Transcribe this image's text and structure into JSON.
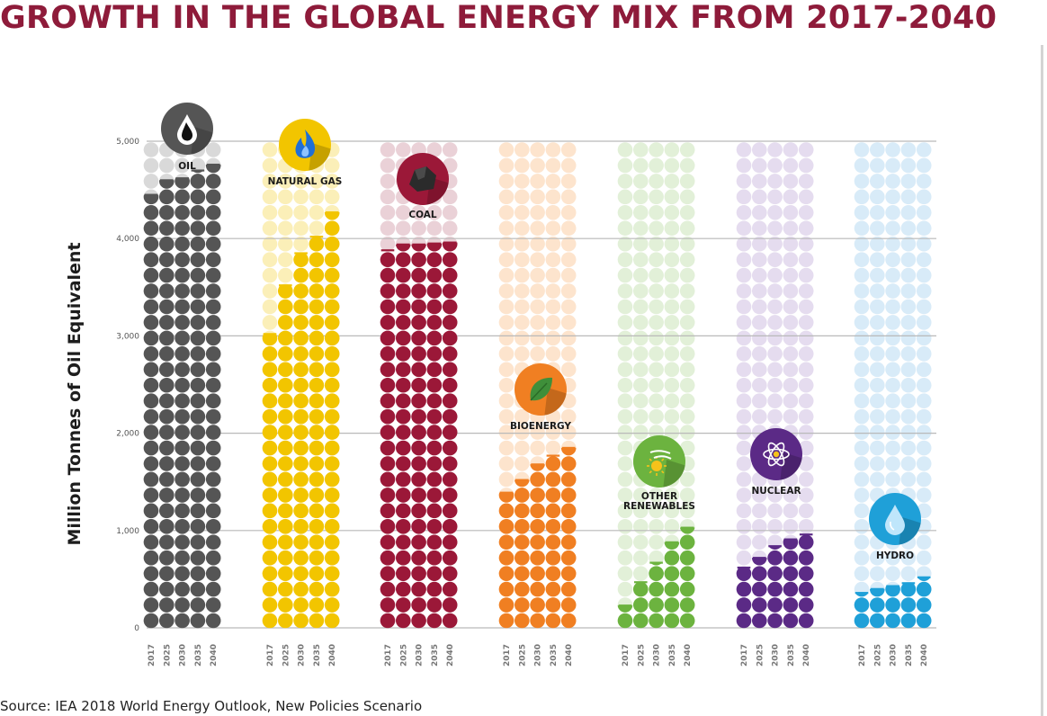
{
  "title": "GROWTH IN THE GLOBAL ENERGY MIX FROM 2017-2040",
  "source": "Source: IEA 2018 World Energy Outlook, New Policies Scenario",
  "chart_data": {
    "type": "bar",
    "title": "GROWTH IN THE GLOBAL ENERGY MIX FROM 2017-2040",
    "ylabel": "Million Tonnes of Oil Equivalent",
    "ylim": [
      0,
      5000
    ],
    "yticks": [
      "0",
      "1,000",
      "2,000",
      "3,000",
      "4,000",
      "5,000"
    ],
    "categories": [
      "2017",
      "2025",
      "2030",
      "2035",
      "2040"
    ],
    "grid": true,
    "series": [
      {
        "name": "OIL",
        "icon": "oil-drop-icon",
        "color": "#555555",
        "light": "#d9d9d9",
        "values": [
          4450,
          4600,
          4620,
          4700,
          4760
        ]
      },
      {
        "name": "NATURAL GAS",
        "icon": "flame-icon",
        "color": "#f2c500",
        "light": "#fbefb8",
        "values": [
          3020,
          3520,
          3850,
          4020,
          4270
        ]
      },
      {
        "name": "COAL",
        "icon": "coal-lump-icon",
        "color": "#9b1838",
        "light": "#ead1d7",
        "values": [
          3880,
          3940,
          3940,
          3950,
          3960
        ]
      },
      {
        "name": "BIOENERGY",
        "icon": "leaf-icon",
        "color": "#f07f22",
        "light": "#fde4cd",
        "values": [
          1390,
          1520,
          1680,
          1770,
          1850
        ]
      },
      {
        "name": "OTHER RENEWABLES",
        "icon": "wind-sun-icon",
        "color": "#6cb33f",
        "light": "#e2f0d8",
        "values": [
          230,
          470,
          670,
          880,
          1030
        ]
      },
      {
        "name": "NUCLEAR",
        "icon": "atom-icon",
        "color": "#5b2a86",
        "light": "#e5dcef",
        "values": [
          620,
          720,
          840,
          910,
          960
        ]
      },
      {
        "name": "HYDRO",
        "icon": "water-drop-icon",
        "color": "#1fa0d8",
        "light": "#d8ebf8",
        "values": [
          360,
          400,
          430,
          460,
          520
        ]
      }
    ]
  }
}
